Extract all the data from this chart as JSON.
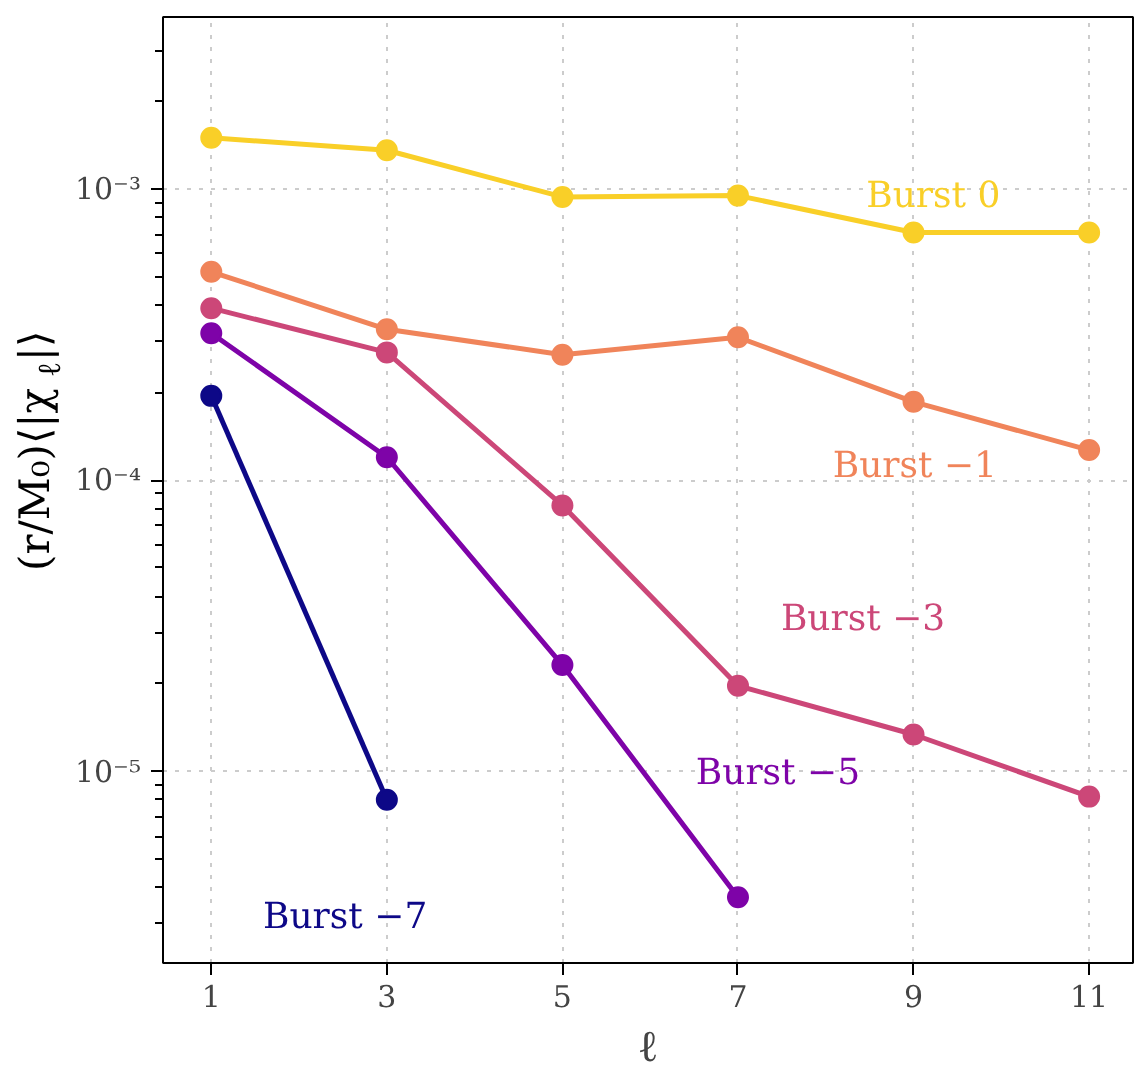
{
  "chart_data": {
    "type": "line",
    "xlabel": "ℓ",
    "ylabel": "(r/M₀)⟨|χ$_{ℓ}$|⟩",
    "x": [
      1,
      3,
      5,
      7,
      9,
      11
    ],
    "log": "y",
    "grid": true,
    "marker": "circle",
    "line_style": "solid",
    "xlim": [
      0.45,
      11.5
    ],
    "ylim": [
      2.2e-06,
      0.0039
    ],
    "xticks": [
      1,
      3,
      5,
      7,
      9,
      11
    ],
    "yticks": [
      {
        "value": 1e-05,
        "label": "10⁻⁵"
      },
      {
        "value": 0.0001,
        "label": "10⁻⁴"
      },
      {
        "value": 0.001,
        "label": "10⁻³"
      }
    ],
    "series": [
      {
        "name": "Burst  0",
        "color": "#f9cf28",
        "values": [
          0.0015,
          0.00136,
          0.00094,
          0.00095,
          0.00071,
          0.00071
        ]
      },
      {
        "name": "Burst  −1",
        "color": "#f0845a",
        "values": [
          0.00052,
          0.00033,
          0.00027,
          0.00031,
          0.000186,
          0.000127
        ]
      },
      {
        "name": "Burst  −3",
        "color": "#cc4778",
        "values": [
          0.00039,
          0.000275,
          8.2e-05,
          1.97e-05,
          1.34e-05,
          8.2e-06
        ]
      },
      {
        "name": "Burst  −5",
        "color": "#7e03a8",
        "values": [
          0.00032,
          0.00012,
          2.32e-05,
          3.7e-06,
          null,
          null
        ]
      },
      {
        "name": "Burst  −7",
        "color": "#0d0887",
        "values": [
          0.000195,
          8e-06,
          null,
          null,
          null,
          null
        ]
      }
    ]
  }
}
